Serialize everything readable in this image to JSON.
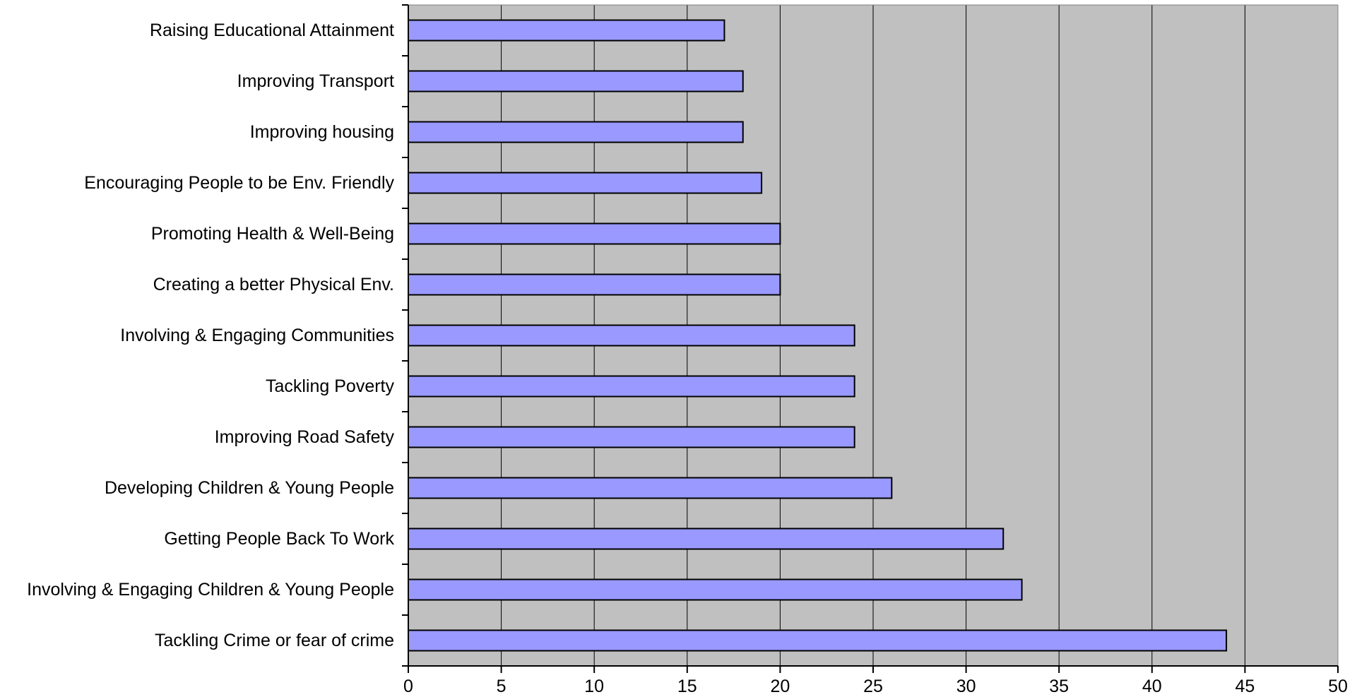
{
  "chart_data": {
    "type": "bar",
    "orientation": "horizontal",
    "title": "",
    "xlabel": "",
    "ylabel": "",
    "categories": [
      "Raising Educational Attainment",
      "Improving Transport",
      "Improving housing",
      "Encouraging People to be Env. Friendly",
      "Promoting Health & Well-Being",
      "Creating a better Physical Env.",
      "Involving & Engaging Communities",
      "Tackling Poverty",
      "Improving Road Safety",
      "Developing Children & Young People",
      "Getting People Back To Work",
      "Involving & Engaging Children & Young People",
      "Tackling Crime or fear of crime"
    ],
    "values": [
      17,
      18,
      18,
      19,
      20,
      20,
      24,
      24,
      24,
      26,
      32,
      33,
      44
    ],
    "xlim": [
      0,
      50
    ],
    "xticks": [
      0,
      5,
      10,
      15,
      20,
      25,
      30,
      35,
      40,
      45,
      50
    ],
    "grid": "vertical",
    "legend": "none",
    "colors": {
      "bar_fill": "#9999FF",
      "bar_stroke": "#000000",
      "plot_background": "#C0C0C0",
      "gridline": "#000000"
    }
  }
}
